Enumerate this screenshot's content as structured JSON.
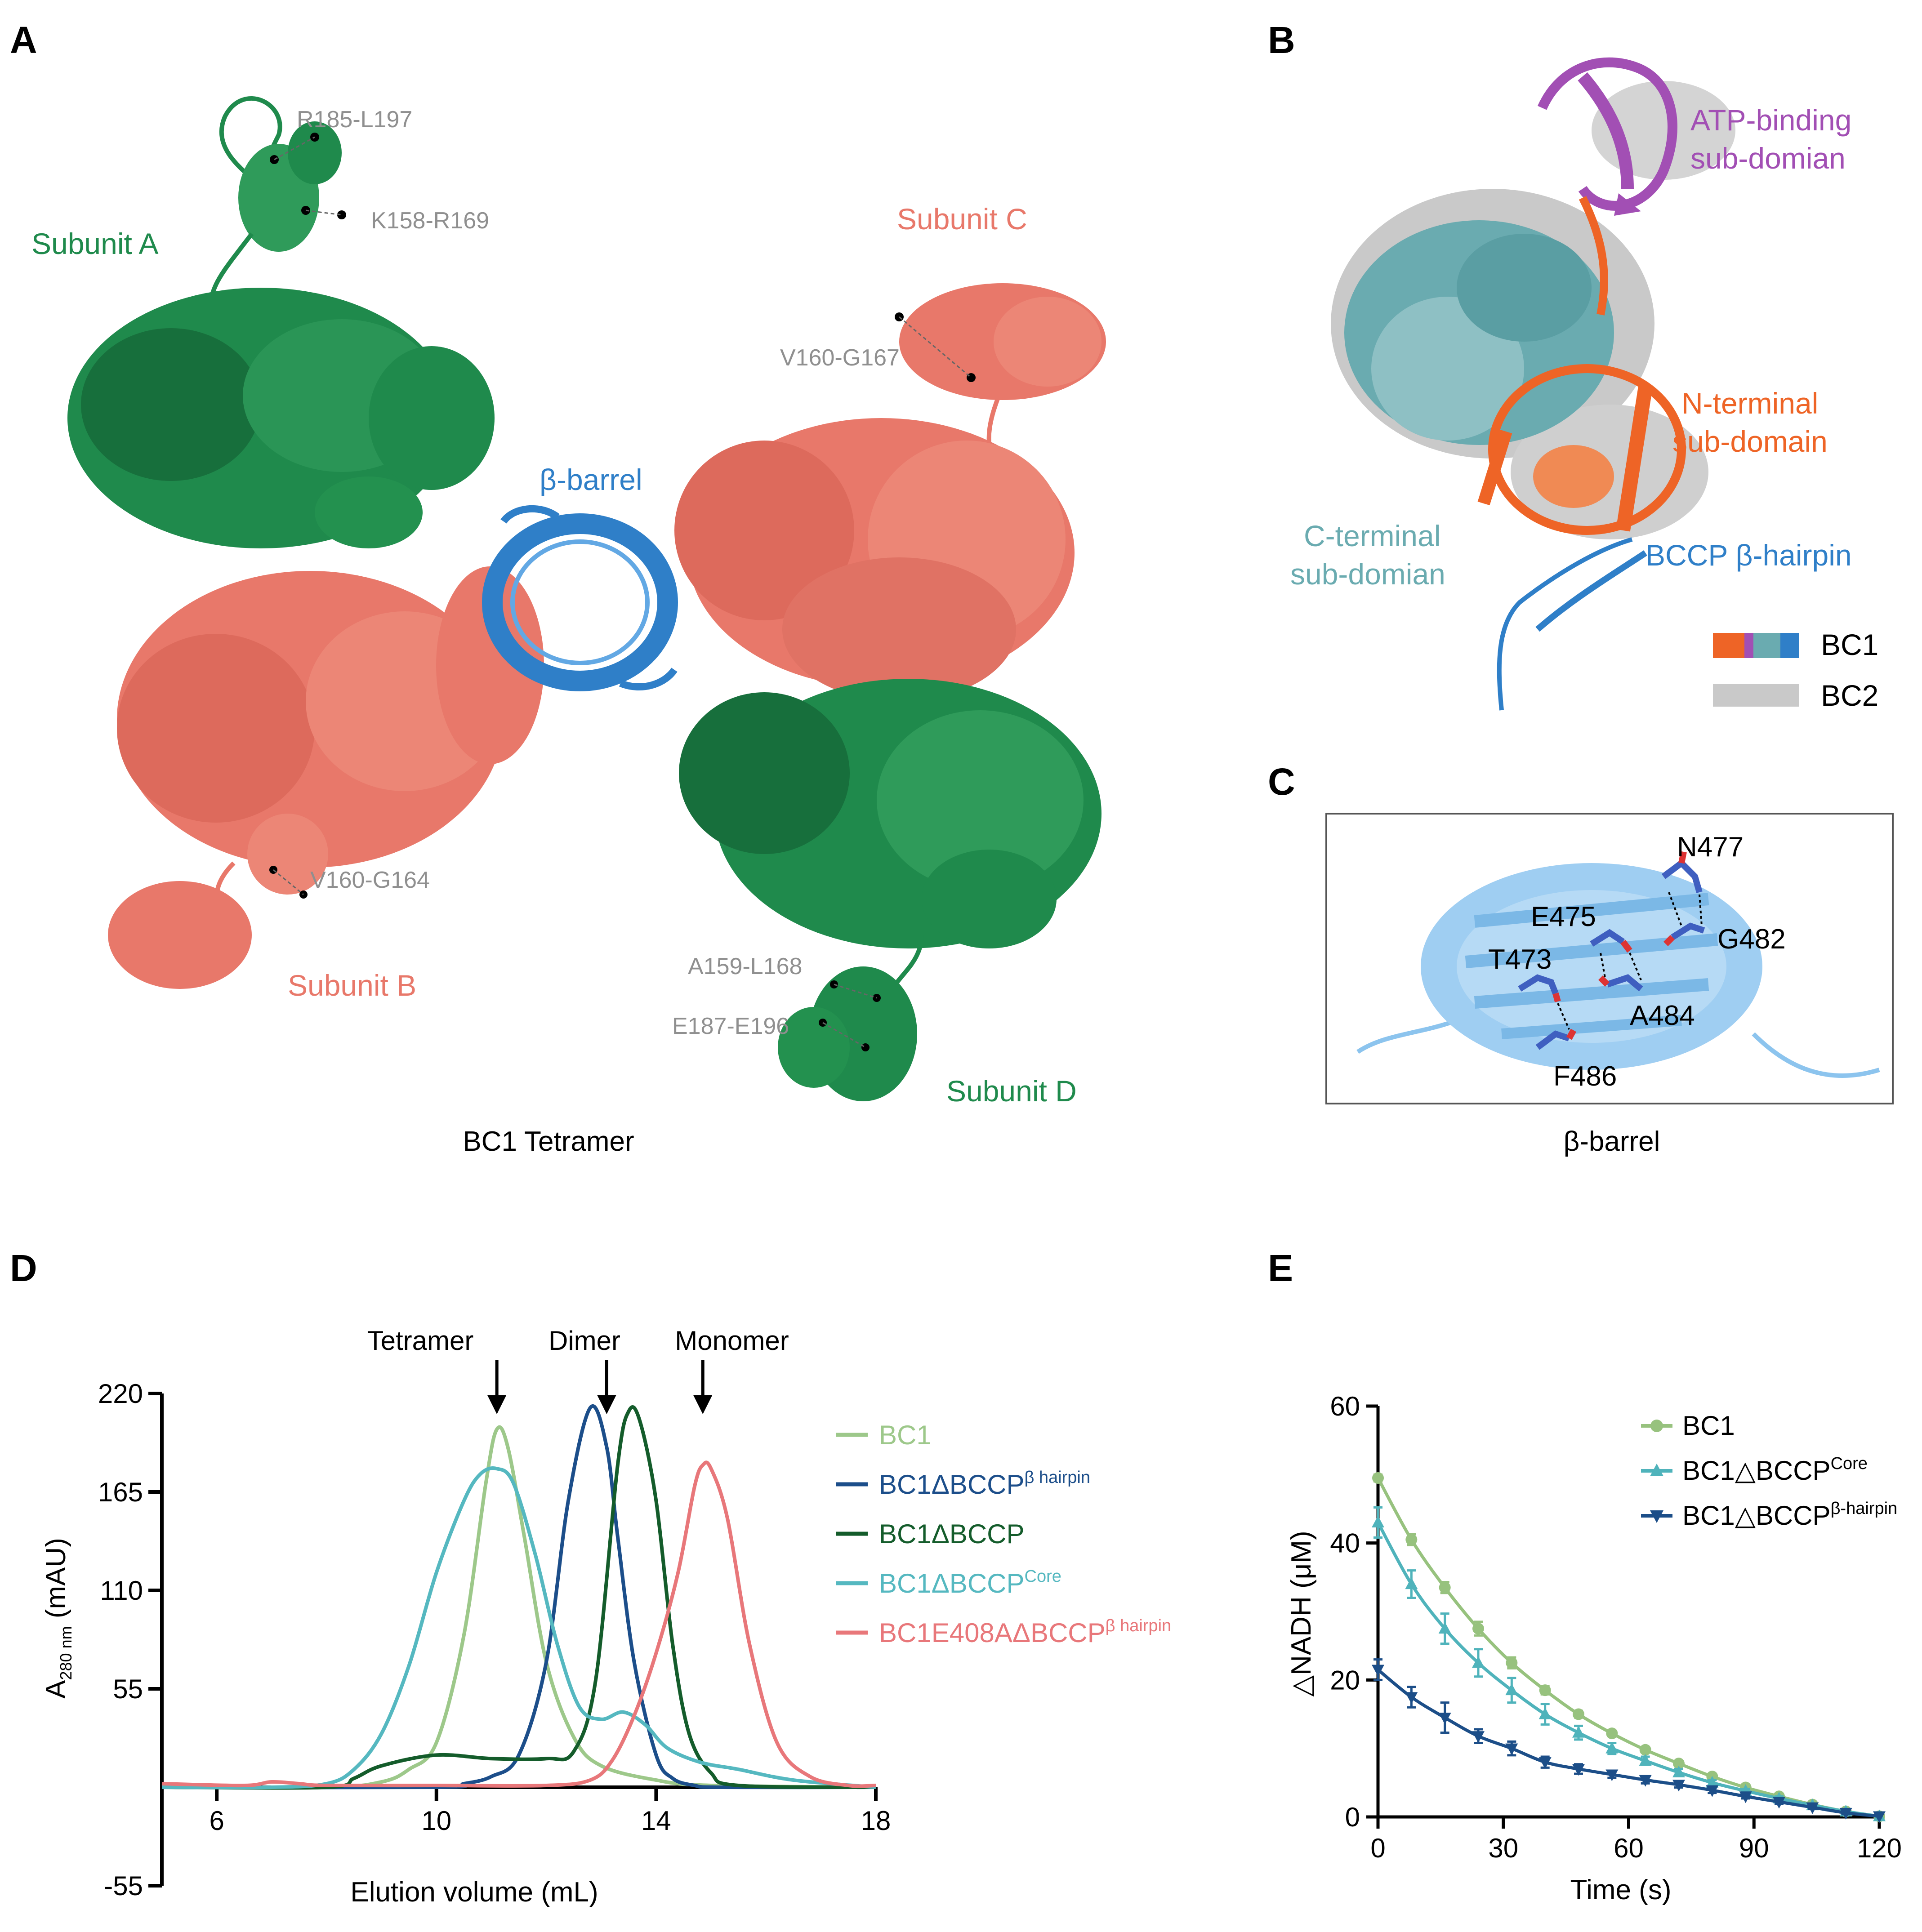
{
  "panels": {
    "A": {
      "letter": "A",
      "caption": "BC1 Tetramer",
      "subunits": [
        "Subunit A",
        "Subunit B",
        "Subunit C",
        "Subunit D"
      ],
      "barrel_label": "β-barrel",
      "gaps": [
        "R185-L197",
        "K158-R169",
        "V160-G167",
        "V160-G164",
        "A159-L168",
        "E187-E196"
      ]
    },
    "B": {
      "letter": "B",
      "domains": {
        "atp_1": "ATP-binding",
        "atp_2": "sub-domian",
        "nterm_1": "N-terminal",
        "nterm_2": "sub-domain",
        "cterm_1": "C-terminal",
        "cterm_2": "sub-domian",
        "bccp": "BCCP β-hairpin"
      },
      "legend": [
        "BC1",
        "BC2"
      ]
    },
    "C": {
      "letter": "C",
      "residues": [
        "N477",
        "E475",
        "G482",
        "T473",
        "A484",
        "F486"
      ],
      "caption": "β-barrel"
    },
    "D": {
      "letter": "D",
      "arrows": [
        "Tetramer",
        "Dimer",
        "Monomer"
      ],
      "y_label": "A",
      "y_label_sub": "280 nm",
      "y_label_unit": " (mAU)",
      "x_label": "Elution volume (mL)",
      "legend": [
        {
          "base": "BC1",
          "sup": ""
        },
        {
          "base": "BC1ΔBCCP",
          "sup": "β hairpin"
        },
        {
          "base": "BC1ΔBCCP",
          "sup": ""
        },
        {
          "base": "BC1ΔBCCP",
          "sup": "Core"
        },
        {
          "base": "BC1E408AΔBCCP",
          "sup": "β hairpin"
        }
      ]
    },
    "E": {
      "letter": "E",
      "y_label": "△NADH (μM)",
      "x_label": "Time (s)",
      "legend": [
        {
          "base": "BC1",
          "sup": ""
        },
        {
          "base": "BC1△BCCP",
          "sup": "Core"
        },
        {
          "base": "BC1△BCCP",
          "sup": "β-hairpin"
        }
      ]
    }
  },
  "colors": {
    "green": "#1f8a4c",
    "salmon": "#e8786a",
    "blue": "#2f7fc8",
    "purple": "#a24fb4",
    "orange": "#ee6426",
    "teal": "#6aabb0",
    "gray": "#c9c9c9",
    "light_blue": "#8cc4ee"
  },
  "chart_data": [
    {
      "type": "line",
      "x_range": [
        5,
        18
      ],
      "y_range": [
        -55,
        220
      ],
      "x_ticks": [
        "6",
        "10",
        "14",
        "18"
      ],
      "y_ticks": [
        "220",
        "165",
        "110",
        "55",
        "-55"
      ],
      "peak_markers": {
        "Tetramer": 11.1,
        "Dimer": 13.1,
        "Monomer": 14.85
      },
      "series": [
        {
          "name": "BC1",
          "color": "#9dc88a",
          "x": [
            5,
            8,
            9,
            9.5,
            10,
            10.5,
            10.9,
            11.1,
            11.3,
            11.6,
            12,
            12.5,
            13,
            14,
            15,
            18
          ],
          "y": [
            0,
            0,
            3,
            10,
            25,
            85,
            170,
            200,
            190,
            140,
            70,
            28,
            12,
            4,
            1,
            0
          ]
        },
        {
          "name": "BC1ΔBCCP β hairpin",
          "color": "#1c4e8a",
          "x": [
            5,
            10,
            10.5,
            11,
            11.5,
            12,
            12.4,
            12.8,
            13.1,
            13.3,
            13.6,
            14,
            14.3,
            14.7,
            15.2,
            18
          ],
          "y": [
            0,
            0,
            2,
            6,
            18,
            70,
            160,
            212,
            190,
            140,
            70,
            18,
            5,
            1,
            0,
            0
          ]
        },
        {
          "name": "BC1ΔBCCP",
          "color": "#145c2b",
          "x": [
            5,
            8,
            8.5,
            9,
            10,
            11,
            12,
            12.5,
            12.9,
            13.3,
            13.5,
            13.7,
            14,
            14.3,
            14.6,
            15,
            15.5,
            18
          ],
          "y": [
            0,
            0,
            5,
            12,
            18,
            16,
            16,
            20,
            60,
            180,
            210,
            205,
            160,
            80,
            30,
            8,
            1,
            0
          ]
        },
        {
          "name": "BC1ΔBCCP Core",
          "color": "#55b8c0",
          "x": [
            5,
            7,
            8,
            8.5,
            9,
            9.5,
            10,
            10.5,
            10.8,
            11.1,
            11.4,
            11.8,
            12.2,
            12.6,
            13,
            13.4,
            13.8,
            14.2,
            14.8,
            15.5,
            16.5,
            18
          ],
          "y": [
            0,
            0,
            2,
            10,
            30,
            68,
            120,
            160,
            175,
            178,
            170,
            130,
            80,
            45,
            38,
            42,
            35,
            22,
            14,
            10,
            4,
            0
          ]
        },
        {
          "name": "BC1E408AΔBCCP β hairpin",
          "color": "#e8777a",
          "x": [
            5,
            6.5,
            7,
            7.5,
            8,
            10,
            12,
            12.8,
            13.2,
            13.6,
            14,
            14.4,
            14.7,
            14.85,
            15,
            15.3,
            15.7,
            16.2,
            16.8,
            17.5,
            18
          ],
          "y": [
            2,
            1,
            3,
            2,
            1,
            1,
            1,
            4,
            15,
            40,
            75,
            120,
            168,
            180,
            178,
            150,
            80,
            25,
            6,
            1,
            1
          ]
        }
      ]
    },
    {
      "type": "line",
      "x_range": [
        0,
        120
      ],
      "y_range": [
        0,
        60
      ],
      "x_ticks": [
        "0",
        "30",
        "60",
        "90",
        "120"
      ],
      "y_ticks": [
        "0",
        "20",
        "40",
        "60"
      ],
      "series": [
        {
          "name": "BC1",
          "color": "#97c27e",
          "marker": "circle",
          "x": [
            0,
            8,
            16,
            24,
            32,
            40,
            48,
            56,
            64,
            72,
            80,
            88,
            96,
            104,
            112,
            120
          ],
          "y": [
            49.5,
            40.5,
            33.5,
            27.5,
            22.5,
            18.5,
            15,
            12.2,
            9.8,
            7.8,
            5.9,
            4.3,
            3,
            1.8,
            0.8,
            0.1
          ],
          "err": [
            0.5,
            0.8,
            0.8,
            1,
            0.8,
            0.6,
            0.5,
            0.4,
            0.3,
            0.3,
            0.3,
            0.2,
            0.2,
            0.2,
            0.2,
            0.1
          ]
        },
        {
          "name": "BC1△BCCP Core",
          "color": "#4fb3bb",
          "marker": "triangle-up",
          "x": [
            0,
            8,
            16,
            24,
            32,
            40,
            48,
            56,
            64,
            72,
            80,
            88,
            96,
            104,
            112,
            120
          ],
          "y": [
            43,
            34,
            27.5,
            22.5,
            18.5,
            15,
            12.3,
            10,
            8.2,
            6.5,
            5,
            3.8,
            2.7,
            1.7,
            0.8,
            0.1
          ],
          "err": [
            2.2,
            2,
            2.2,
            2,
            1.8,
            1.5,
            1,
            0.8,
            0.6,
            0.5,
            0.4,
            0.3,
            0.3,
            0.2,
            0.2,
            0.1
          ]
        },
        {
          "name": "BC1△BCCP β-hairpin",
          "color": "#1c4e88",
          "marker": "triangle-down",
          "x": [
            0,
            8,
            16,
            24,
            32,
            40,
            48,
            56,
            64,
            72,
            80,
            88,
            96,
            104,
            112,
            120
          ],
          "y": [
            21.5,
            17.5,
            14.5,
            11.8,
            10,
            8,
            7,
            6.2,
            5.4,
            4.7,
            3.9,
            3,
            2.2,
            1.4,
            0.6,
            0.1
          ],
          "err": [
            1.5,
            1.5,
            2.2,
            1,
            1,
            0.8,
            0.7,
            0.5,
            0.5,
            0.4,
            0.4,
            0.3,
            0.3,
            0.2,
            0.2,
            0.1
          ]
        }
      ]
    }
  ]
}
